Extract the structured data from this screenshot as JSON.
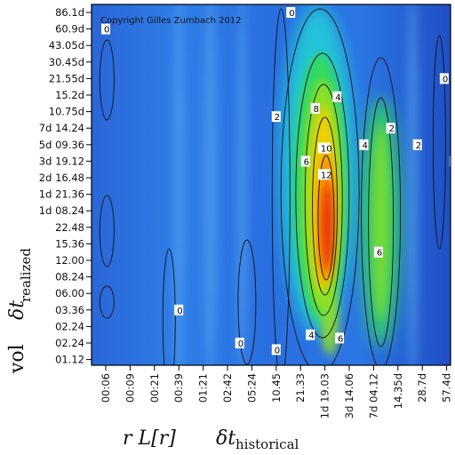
{
  "chart_data": {
    "type": "heatmap",
    "copyright": "Copyright Gilles Zumbach 2012",
    "x_ticks": [
      "00:06",
      "00:09",
      "00:21",
      "00:39",
      "01:21",
      "02:42",
      "05:24",
      "10.45",
      "21.33",
      "1d 19.03",
      "3d 14.06",
      "7d 04.12",
      "14.35d",
      "28.7d",
      "57.4d"
    ],
    "y_ticks": [
      "86.1d",
      "60.9d",
      "43.05d",
      "30.45d",
      "21.55d",
      "15.2d",
      "10.75d",
      "7d 14.24",
      "5d 09.36",
      "3d 19.12",
      "2d 16.48",
      "1d 21.36",
      "1d 08.24",
      "22.48",
      "15.36",
      "12.00",
      "08.24",
      "06.00",
      "03.36",
      "02.24",
      "02.24",
      "01.12"
    ],
    "xlabel": {
      "left": "r L[r]",
      "symbol": "δt",
      "subscript": "historical"
    },
    "ylabel": {
      "left": "vol",
      "symbol": "δt",
      "subscript": "realized"
    },
    "contour_levels": [
      0,
      2,
      4,
      6,
      8,
      10,
      12
    ],
    "contour_labels": [
      {
        "text": "0",
        "x": 0,
        "y": 1
      },
      {
        "text": "0",
        "x": 3,
        "y": 18
      },
      {
        "text": "0",
        "x": 5.5,
        "y": 20
      },
      {
        "text": "0",
        "x": 7,
        "y": 20.4
      },
      {
        "text": "0",
        "x": 7.6,
        "y": 0
      },
      {
        "text": "0",
        "x": 13.9,
        "y": 4
      },
      {
        "text": "0",
        "x": 14.3,
        "y": 9
      },
      {
        "text": "2",
        "x": 7,
        "y": 6.3
      },
      {
        "text": "2",
        "x": 11.7,
        "y": 7
      },
      {
        "text": "2",
        "x": 12.8,
        "y": 8
      },
      {
        "text": "4",
        "x": 9.5,
        "y": 5.1
      },
      {
        "text": "4",
        "x": 10.6,
        "y": 8
      },
      {
        "text": "4",
        "x": 8.4,
        "y": 19.5
      },
      {
        "text": "6",
        "x": 8.2,
        "y": 9
      },
      {
        "text": "6",
        "x": 11.2,
        "y": 14.5
      },
      {
        "text": "6",
        "x": 9.6,
        "y": 19.7
      },
      {
        "text": "8",
        "x": 8.6,
        "y": 5.8
      },
      {
        "text": "10",
        "x": 8.9,
        "y": 8.2
      },
      {
        "text": "12",
        "x": 8.9,
        "y": 9.8
      }
    ],
    "colorscale": [
      "#1a3cb4",
      "#2f7ce6",
      "#20c8d8",
      "#30d860",
      "#90e020",
      "#f0d000",
      "#ff8a00",
      "#e02010"
    ],
    "grid": false,
    "legend": "none"
  }
}
